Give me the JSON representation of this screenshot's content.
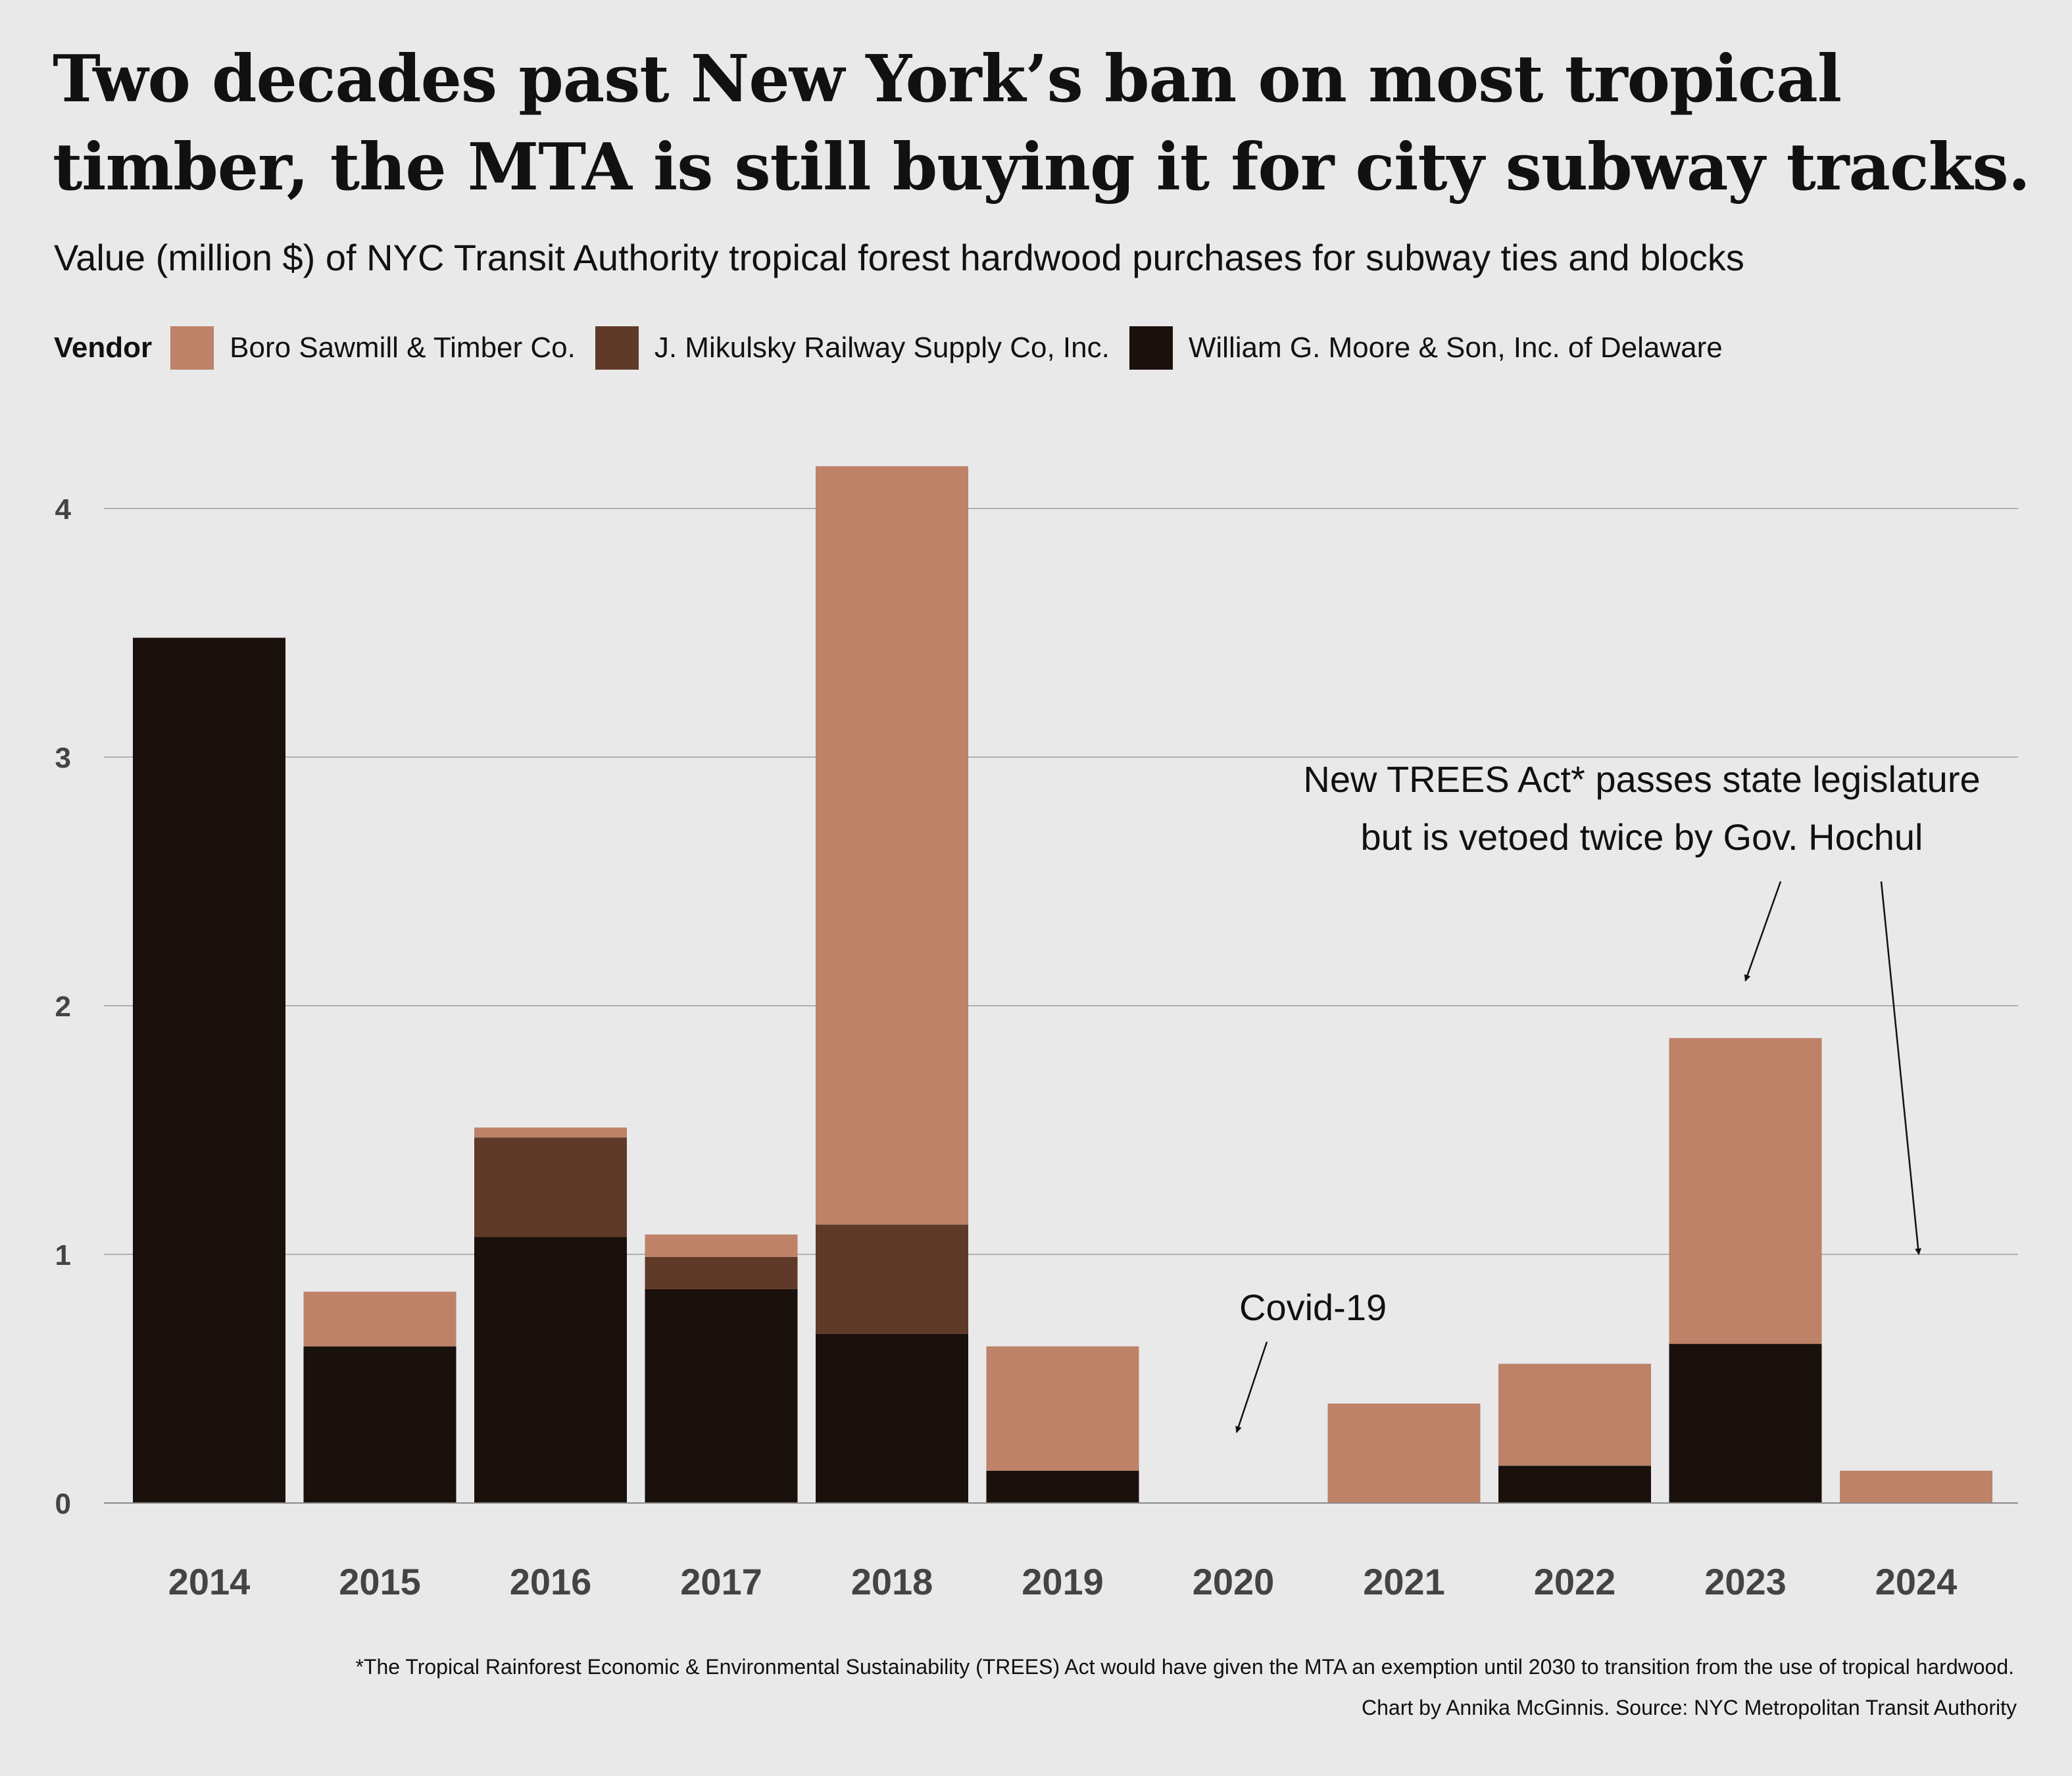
{
  "title": "Two decades past New York’s ban on most tropical timber, the MTA is still buying it for city subway tracks.",
  "subtitle": "Value (million $) of NYC Transit Authority tropical forest hardwood purchases for subway ties and blocks",
  "legend": {
    "title": "Vendor",
    "items": [
      {
        "label": "Boro Sawmill & Timber Co.",
        "color": "#bd8268"
      },
      {
        "label": "J. Mikulsky Railway Supply Co, Inc.",
        "color": "#603a28"
      },
      {
        "label": "William G. Moore & Son, Inc. of Delaware",
        "color": "#1a100c"
      }
    ]
  },
  "chart_data": {
    "type": "bar",
    "stacked": true,
    "categories": [
      "2014",
      "2015",
      "2016",
      "2017",
      "2018",
      "2019",
      "2020",
      "2021",
      "2022",
      "2023",
      "2024"
    ],
    "series": [
      {
        "name": "William G. Moore & Son, Inc. of Delaware",
        "color": "#1a100c",
        "values": [
          3.48,
          0.63,
          1.07,
          0.86,
          0.68,
          0.13,
          0,
          0,
          0.15,
          0.64,
          0
        ]
      },
      {
        "name": "J. Mikulsky Railway Supply Co, Inc.",
        "color": "#603a28",
        "values": [
          0,
          0,
          0.4,
          0.13,
          0.44,
          0,
          0,
          0,
          0,
          0,
          0
        ]
      },
      {
        "name": "Boro Sawmill & Timber Co.",
        "color": "#bd8268",
        "values": [
          0,
          0.22,
          0.04,
          0.09,
          3.05,
          0.5,
          0,
          0.4,
          0.41,
          1.23,
          0.13
        ]
      }
    ],
    "ylim": [
      0,
      4.2
    ],
    "yticks": [
      0,
      1,
      2,
      3,
      4
    ],
    "grid": true,
    "legend_position": "top-left",
    "annotations": [
      {
        "text": "Covid-19",
        "target_category": "2020",
        "target_value": 0.3
      },
      {
        "text": "New TREES Act* passes state legislature but is vetoed twice by Gov. Hochul",
        "lines": [
          "New TREES Act* passes state legislature",
          "but is vetoed twice by Gov. Hochul"
        ],
        "targets": [
          {
            "category": "2023",
            "value": 2.1
          },
          {
            "category": "2024",
            "value": 1.0
          }
        ]
      }
    ]
  },
  "footnote": "*The Tropical Rainforest Economic & Environmental Sustainability (TREES) Act would have given the MTA an exemption until 2030 to transition from the use of tropical hardwood.",
  "credit": "Chart by Annika McGinnis. Source: NYC Metropolitan Transit Authority"
}
